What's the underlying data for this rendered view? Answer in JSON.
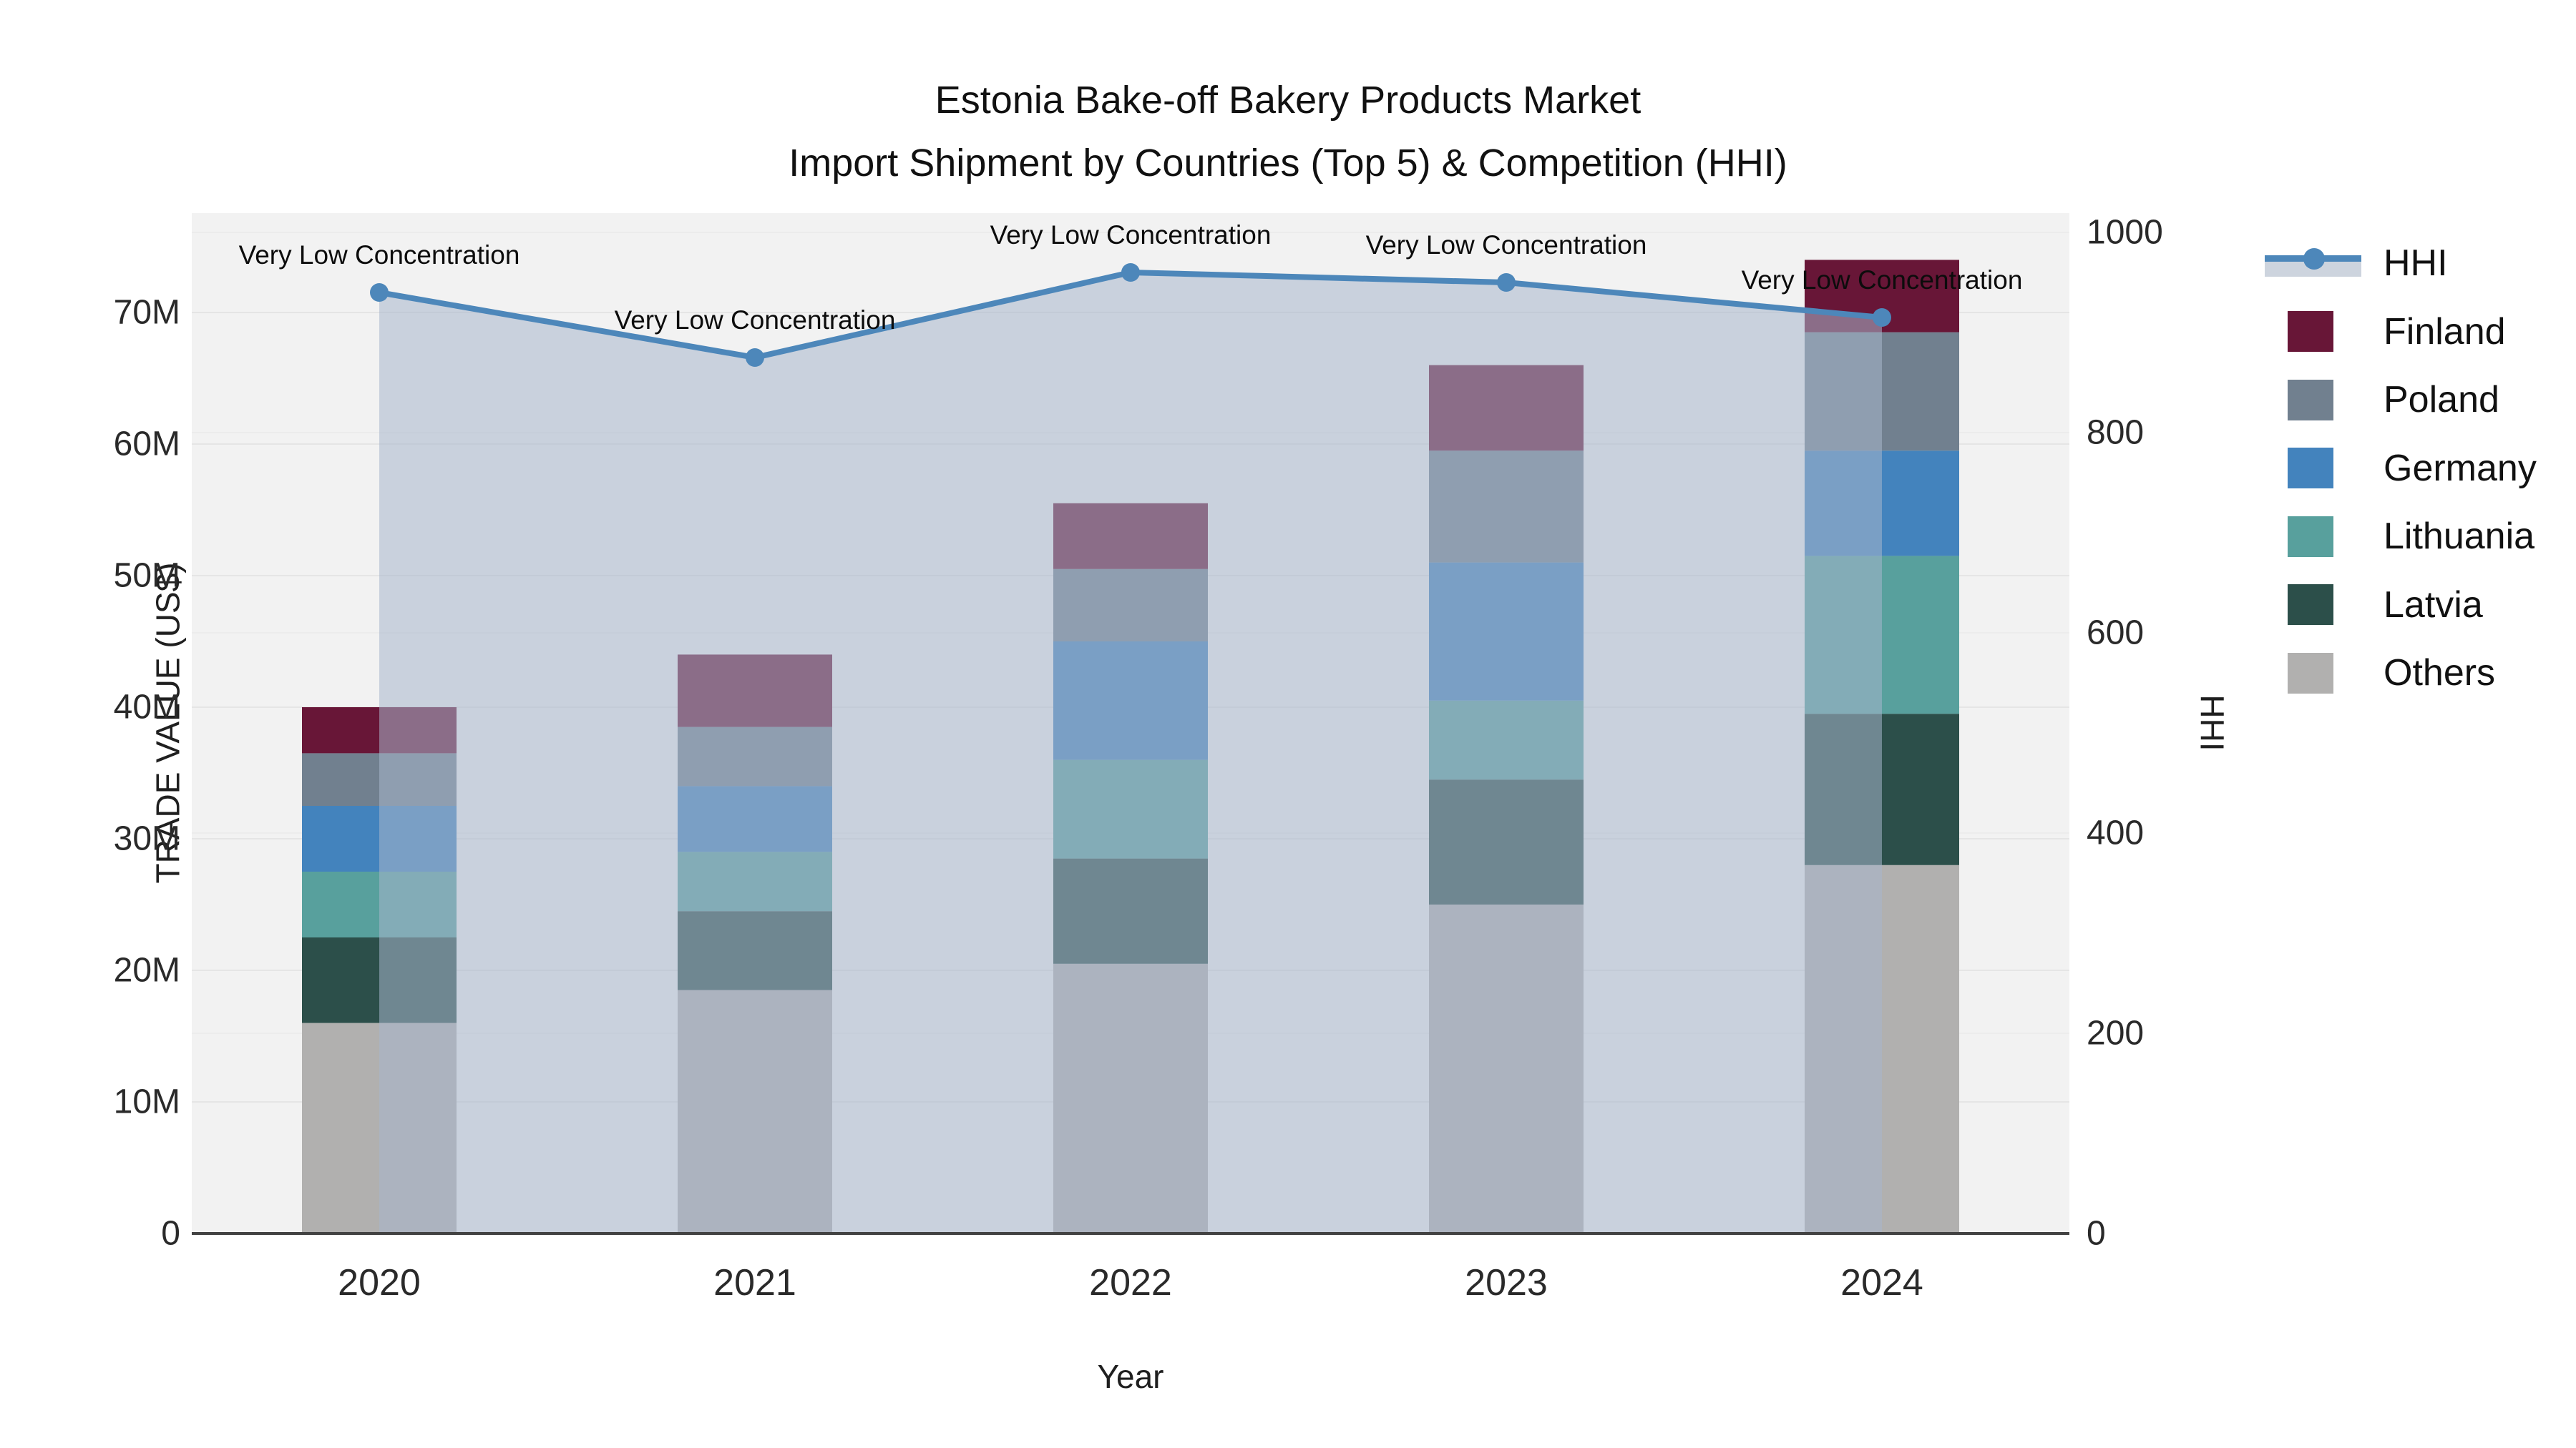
{
  "title": {
    "line1": "Estonia Bake-off Bakery Products Market",
    "line2": "Import Shipment by Countries (Top 5) & Competition (HHI)"
  },
  "axes": {
    "left_title": "TRADE VALUE (US$)",
    "bottom_title": "Year",
    "right_title": "HHI",
    "left_ticks": [
      "0",
      "10M",
      "20M",
      "30M",
      "40M",
      "50M",
      "60M",
      "70M"
    ],
    "right_ticks": [
      "0",
      "200",
      "400",
      "600",
      "800",
      "1000"
    ]
  },
  "legend": {
    "items": [
      "HHI",
      "Finland",
      "Poland",
      "Germany",
      "Lithuania",
      "Latvia",
      "Others"
    ]
  },
  "colors": {
    "finland": "#681637",
    "poland": "#71808f",
    "germany": "#4383bd",
    "lithuania": "#58a09d",
    "latvia": "#2c4f4a",
    "others": "#b1b0af",
    "hhi_line": "#4d87ba",
    "hhi_fill": "rgba(167,182,204,0.55)",
    "plot_bg": "#f2f2f2",
    "grid_left": "#e5e5e5",
    "grid_right": "#ececec",
    "axis_line": "#424242",
    "fill_band_legend": "#cdd4de"
  },
  "chart_data": {
    "type": "bar",
    "subtype": "stacked bars (left axis, trade value US$ millions) + HHI line (right axis)",
    "title": "Estonia Bake-off Bakery Products Market Import Shipment by Countries (Top 5) & Competition (HHI)",
    "xlabel": "Year",
    "ylabel": "TRADE VALUE (US$)",
    "ylabel_right": "HHI",
    "ylim_left_millions": [
      0,
      77.5
    ],
    "ylim_right": [
      0,
      1020
    ],
    "grid": true,
    "legend_position": "right",
    "categories": [
      "2020",
      "2021",
      "2022",
      "2023",
      "2024"
    ],
    "series": [
      {
        "name": "Others",
        "type": "bar",
        "stack_order": 1,
        "values_millions": [
          16,
          18.5,
          20.5,
          25,
          28
        ]
      },
      {
        "name": "Latvia",
        "type": "bar",
        "stack_order": 2,
        "values_millions": [
          6.5,
          6,
          8,
          9.5,
          11.5
        ]
      },
      {
        "name": "Lithuania",
        "type": "bar",
        "stack_order": 3,
        "values_millions": [
          5,
          4.5,
          7.5,
          6,
          12
        ]
      },
      {
        "name": "Germany",
        "type": "bar",
        "stack_order": 4,
        "values_millions": [
          5,
          5,
          9,
          10.5,
          8
        ]
      },
      {
        "name": "Poland",
        "type": "bar",
        "stack_order": 5,
        "values_millions": [
          4,
          4.5,
          5.5,
          8.5,
          9
        ]
      },
      {
        "name": "Finland",
        "type": "bar",
        "stack_order": 6,
        "values_millions": [
          3.5,
          5.5,
          5,
          6.5,
          5.5
        ]
      }
    ],
    "bar_totals_millions": [
      40,
      44,
      55.5,
      66,
      74
    ],
    "line_series": {
      "name": "HHI",
      "axis": "right",
      "values": [
        940,
        875,
        960,
        950,
        915
      ],
      "fill_to_zero": true
    },
    "annotations": [
      {
        "x": "2020",
        "text": "Very Low Concentration"
      },
      {
        "x": "2021",
        "text": "Very Low Concentration"
      },
      {
        "x": "2022",
        "text": "Very Low Concentration"
      },
      {
        "x": "2023",
        "text": "Very Low Concentration"
      },
      {
        "x": "2024",
        "text": "Very Low Concentration"
      }
    ]
  }
}
